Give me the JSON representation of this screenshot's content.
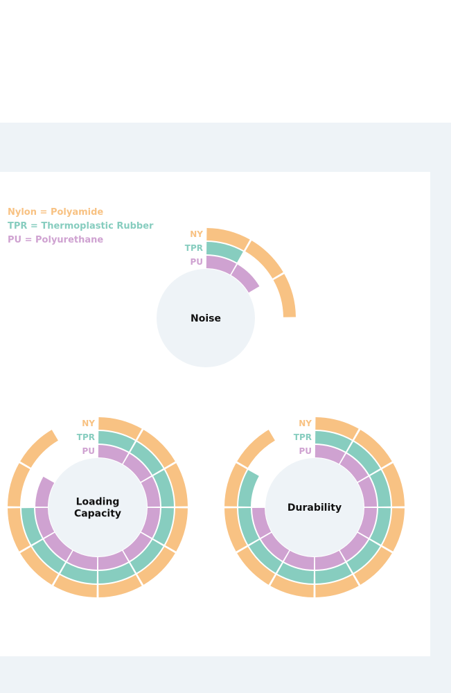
{
  "legend": {
    "ny": "Nylon = Polyamide",
    "tpr": "TPR = Thermoplastic Rubber",
    "pu": "PU = Polyurethane"
  },
  "colors": {
    "ny": "#f8c283",
    "tpr": "#87cdbf",
    "pu": "#cfa2d1",
    "center": "#eef3f7",
    "background": "#eef3f7"
  },
  "chart_data": [
    {
      "type": "radial-bar",
      "title": "Noise",
      "max_segments": 12,
      "series": [
        {
          "name": "NY",
          "values": [
            3
          ]
        },
        {
          "name": "TPR",
          "values": [
            1
          ]
        },
        {
          "name": "PU",
          "values": [
            2
          ]
        }
      ]
    },
    {
      "type": "radial-bar",
      "title": "Loading Capacity",
      "title_lines": [
        "Loading",
        "Capacity"
      ],
      "max_segments": 12,
      "series": [
        {
          "name": "NY",
          "values": [
            11
          ]
        },
        {
          "name": "TPR",
          "values": [
            9
          ]
        },
        {
          "name": "PU",
          "values": [
            10
          ]
        }
      ]
    },
    {
      "type": "radial-bar",
      "title": "Durability",
      "max_segments": 12,
      "series": [
        {
          "name": "NY",
          "values": [
            11
          ]
        },
        {
          "name": "TPR",
          "values": [
            10
          ]
        },
        {
          "name": "PU",
          "values": [
            9
          ]
        }
      ]
    }
  ]
}
